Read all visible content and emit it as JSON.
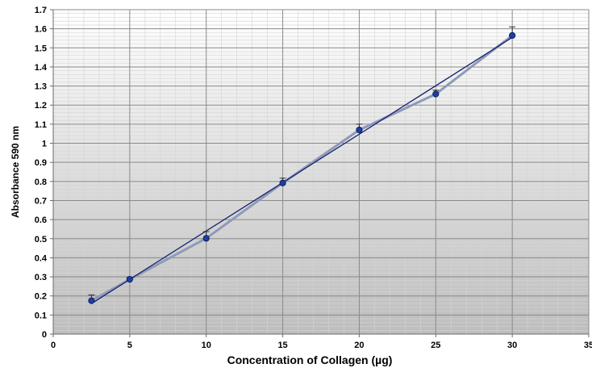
{
  "chart_data": {
    "type": "line",
    "title": "",
    "xlabel": "Concentration of Collagen (µg)",
    "ylabel": "Absorbance 590 nm",
    "xlim": [
      0,
      35
    ],
    "ylim": [
      0,
      1.7
    ],
    "x_ticks": [
      0,
      5,
      10,
      15,
      20,
      25,
      30,
      35
    ],
    "y_ticks": [
      0,
      0.1,
      0.2,
      0.3,
      0.4,
      0.5,
      0.6,
      0.7,
      0.8,
      0.9,
      1,
      1.1,
      1.2,
      1.3,
      1.4,
      1.5,
      1.6,
      1.7
    ],
    "x_tick_labels": [
      "0",
      "5",
      "10",
      "15",
      "20",
      "25",
      "30",
      "35"
    ],
    "y_tick_labels": [
      "0",
      "0.1",
      "0.2",
      "0.3",
      "0.4",
      "0.5",
      "0.6",
      "0.7",
      "0.8",
      "0.9",
      "1",
      "1.1",
      "1.2",
      "1.3",
      "1.4",
      "1.5",
      "1.6",
      "1.7"
    ],
    "grid": true,
    "legend": "none",
    "series": [
      {
        "x": [
          2.5,
          5,
          10,
          15,
          20,
          25,
          30
        ],
        "values": [
          0.175,
          0.287,
          0.502,
          0.792,
          1.07,
          1.258,
          1.565
        ],
        "error_plus": [
          0.03,
          0.01,
          0.035,
          0.025,
          0.03,
          0.02,
          0.045
        ],
        "color": "#1f3f9f"
      }
    ],
    "trendline": {
      "x": [
        2.5,
        30
      ],
      "values": [
        0.16,
        1.555
      ],
      "color": "#14206e"
    },
    "colors": {
      "marker_fill": "#1f3f9f",
      "marker_stroke": "#0c1f66",
      "connector": "#8e9ab8",
      "trendline": "#14206e",
      "gridline": "#8a8a8a"
    }
  }
}
